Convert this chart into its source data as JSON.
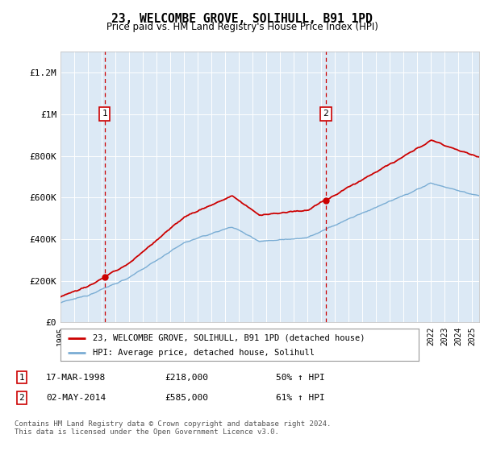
{
  "title": "23, WELCOMBE GROVE, SOLIHULL, B91 1PD",
  "subtitle": "Price paid vs. HM Land Registry's House Price Index (HPI)",
  "legend_label_red": "23, WELCOMBE GROVE, SOLIHULL, B91 1PD (detached house)",
  "legend_label_blue": "HPI: Average price, detached house, Solihull",
  "sale1_date": "17-MAR-1998",
  "sale1_price": "£218,000",
  "sale1_hpi": "50% ↑ HPI",
  "sale2_date": "02-MAY-2014",
  "sale2_price": "£585,000",
  "sale2_hpi": "61% ↑ HPI",
  "footnote": "Contains HM Land Registry data © Crown copyright and database right 2024.\nThis data is licensed under the Open Government Licence v3.0.",
  "bg_color": "#dce9f5",
  "ylim": [
    0,
    1300000
  ],
  "yticks": [
    0,
    200000,
    400000,
    600000,
    800000,
    1000000,
    1200000
  ],
  "ytick_labels": [
    "£0",
    "£200K",
    "£400K",
    "£600K",
    "£800K",
    "£1M",
    "£1.2M"
  ],
  "sale1_year": 1998.21,
  "sale1_value": 218000,
  "sale2_year": 2014.33,
  "sale2_value": 585000,
  "red_color": "#cc0000",
  "blue_color": "#7aadd4",
  "grid_color": "#ffffff",
  "border_color": "#bbbbbb",
  "xmin": 1995,
  "xmax": 2025.5
}
